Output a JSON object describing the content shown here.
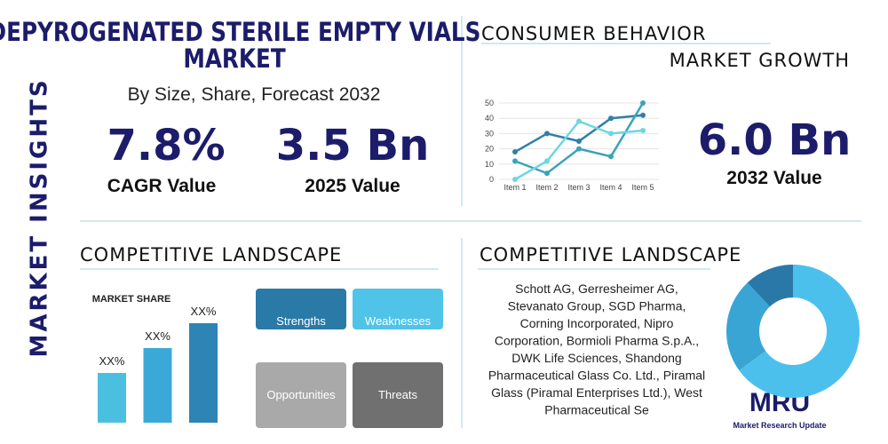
{
  "header": {
    "title_lines": [
      "DEPYROGENATED STERILE EMPTY VIALS",
      "MARKET"
    ],
    "subtitle": "By Size, Share, Forecast 2032",
    "side_label": "MARKET INSIGHTS"
  },
  "stats": [
    {
      "value": "7.8%",
      "label": "CAGR Value"
    },
    {
      "value": "3.5 Bn",
      "label": "2025 Value"
    }
  ],
  "consumer_behavior": {
    "title": "CONSUMER BEHAVIOR",
    "chart": {
      "type": "line",
      "categories": [
        "Item 1",
        "Item 2",
        "Item 3",
        "Item 4",
        "Item 5"
      ],
      "ylim": [
        0,
        50
      ],
      "yticks": [
        0,
        10,
        20,
        30,
        40,
        50
      ],
      "series": [
        {
          "color": "#2f7fa9",
          "values": [
            18,
            30,
            25,
            40,
            42
          ]
        },
        {
          "color": "#3aa3b8",
          "values": [
            12,
            4,
            20,
            15,
            50
          ]
        },
        {
          "color": "#6fd6e2",
          "values": [
            0,
            12,
            38,
            30,
            32
          ]
        }
      ]
    }
  },
  "market_growth": {
    "title": "MARKET GROWTH",
    "value": "6.0 Bn",
    "label": "2032 Value"
  },
  "competitive_left": {
    "title": "COMPETITIVE LANDSCAPE",
    "chart": {
      "type": "bar",
      "title": "MARKET SHARE",
      "values": [
        20,
        30,
        40
      ],
      "value_labels": [
        "XX%",
        "XX%",
        "XX%"
      ],
      "colors": [
        "#4bbfe0",
        "#3aa9d8",
        "#2d84b5"
      ]
    },
    "swot": [
      "Strengths",
      "Weaknesses",
      "Opportunities",
      "Threats"
    ]
  },
  "competitive_right": {
    "title": "COMPETITIVE LANDSCAPE",
    "text_lines": [
      "Schott AG, Gerresheimer AG,",
      "Stevanato Group, SGD Pharma,",
      "Corning Incorporated, Nipro",
      "Corporation, Bormioli Pharma S.p.A.,",
      "DWK Life Sciences, Shandong",
      "Pharmaceutical Glass Co. Ltd., Piramal",
      "Glass (Piramal Enterprises Ltd.), West",
      "Pharmaceutical Se"
    ],
    "donut": {
      "type": "pie",
      "values": [
        65,
        23,
        12
      ],
      "colors": [
        "#4cc0ec",
        "#39a5d5",
        "#2a78a8"
      ]
    }
  },
  "logo": {
    "text": "MRU",
    "caption": "Market Research Update"
  }
}
